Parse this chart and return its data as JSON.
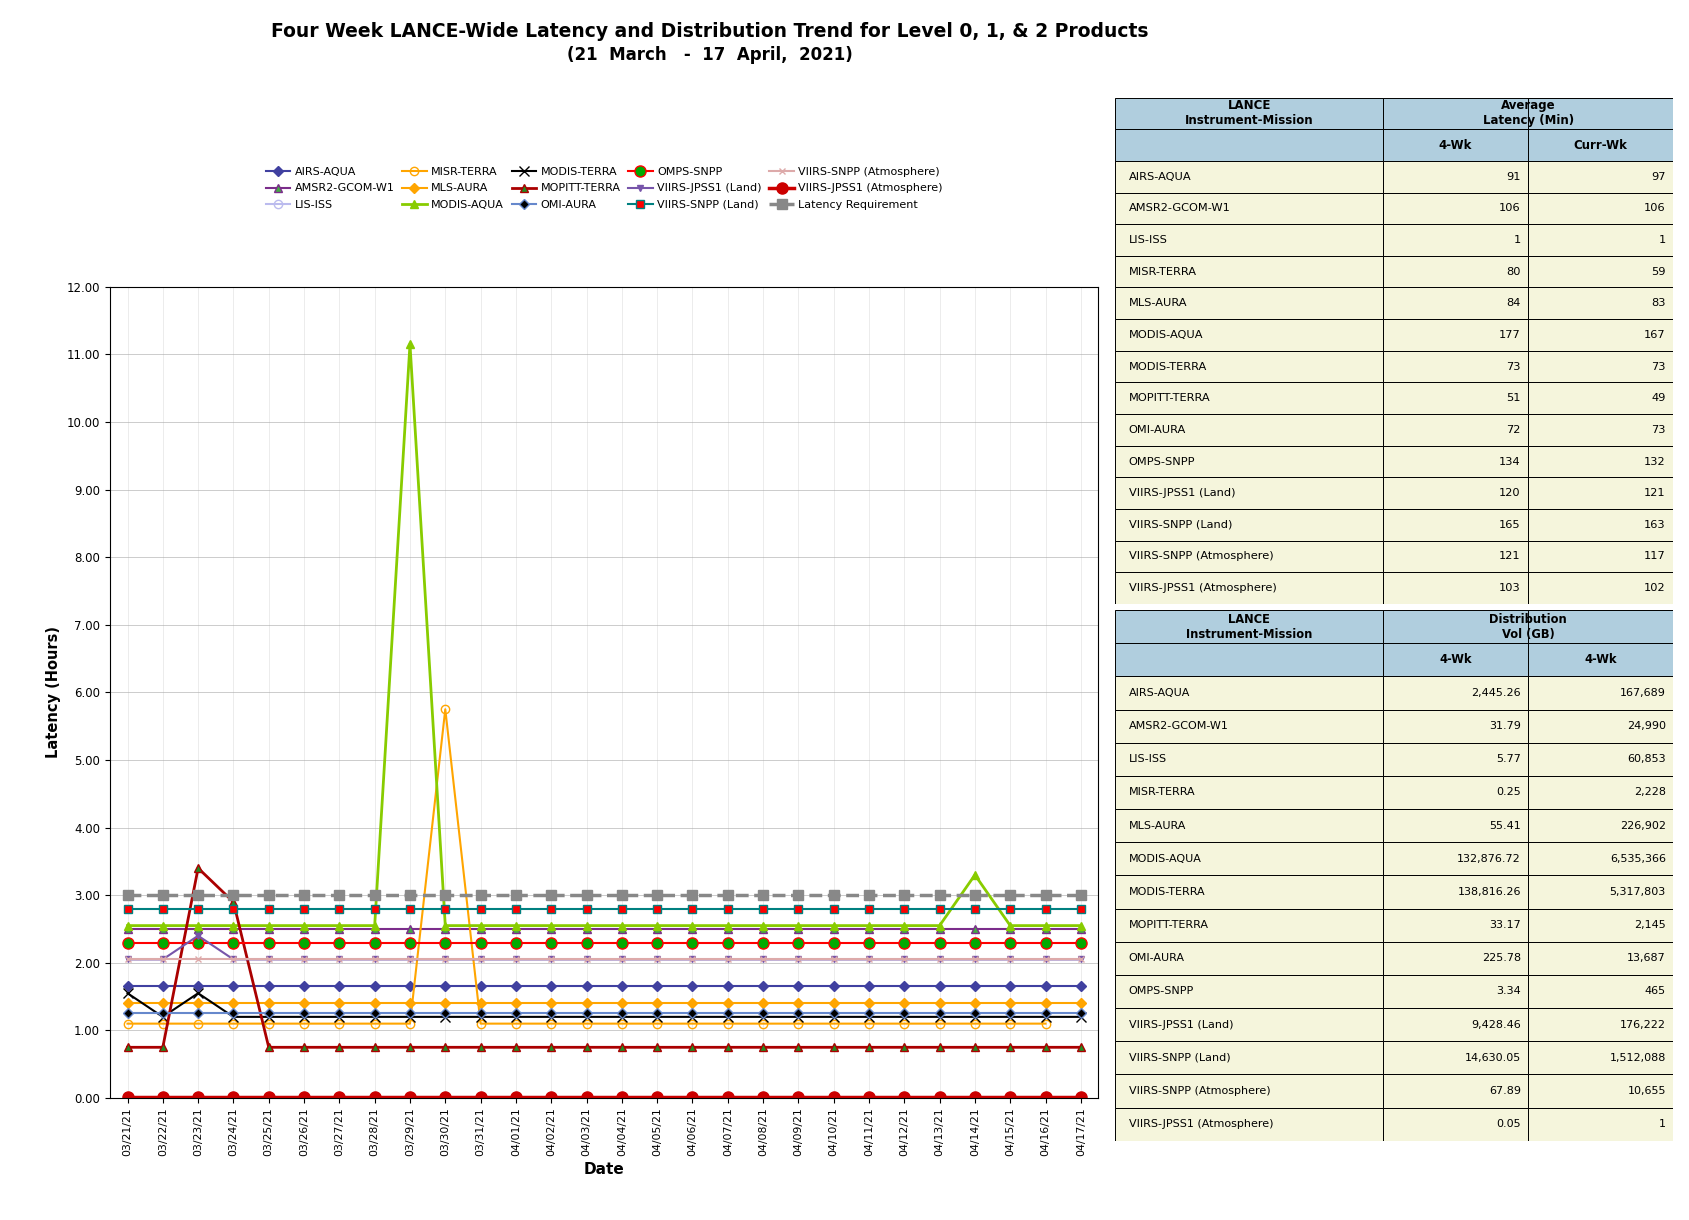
{
  "title_line1": "Four Week LANCE-Wide Latency and Distribution Trend for Level 0, 1, & 2 Products",
  "title_line2": "(21  March   -  17  April,  2021)",
  "xlabel": "Date",
  "ylabel": "Latency (Hours)",
  "ylim": [
    0.0,
    12.0
  ],
  "yticks": [
    0.0,
    1.0,
    2.0,
    3.0,
    4.0,
    5.0,
    6.0,
    7.0,
    8.0,
    9.0,
    10.0,
    11.0,
    12.0
  ],
  "dates": [
    "03/21/21",
    "03/22/21",
    "03/23/21",
    "03/24/21",
    "03/25/21",
    "03/26/21",
    "03/27/21",
    "03/28/21",
    "03/29/21",
    "03/30/21",
    "03/31/21",
    "04/01/21",
    "04/02/21",
    "04/03/21",
    "04/04/21",
    "04/05/21",
    "04/06/21",
    "04/07/21",
    "04/08/21",
    "04/09/21",
    "04/10/21",
    "04/11/21",
    "04/12/21",
    "04/13/21",
    "04/14/21",
    "04/15/21",
    "04/16/21",
    "04/17/21"
  ],
  "series": [
    {
      "name": "AIRS-AQUA",
      "color": "#4040A0",
      "marker": "D",
      "markersize": 5,
      "linewidth": 1.5,
      "linestyle": "-",
      "markerfacecolor": "#4040A0",
      "values": [
        1.65,
        1.65,
        1.65,
        1.65,
        1.65,
        1.65,
        1.65,
        1.65,
        1.65,
        1.65,
        1.65,
        1.65,
        1.65,
        1.65,
        1.65,
        1.65,
        1.65,
        1.65,
        1.65,
        1.65,
        1.65,
        1.65,
        1.65,
        1.65,
        1.65,
        1.65,
        1.65,
        1.65
      ]
    },
    {
      "name": "AMSR2-GCOM-W1",
      "color": "#7B2D8B",
      "marker": "^",
      "markersize": 6,
      "linewidth": 1.5,
      "linestyle": "-",
      "markerfacecolor": "#44AA44",
      "values": [
        2.5,
        2.5,
        2.5,
        2.5,
        2.5,
        2.5,
        2.5,
        2.5,
        2.5,
        2.5,
        2.5,
        2.5,
        2.5,
        2.5,
        2.5,
        2.5,
        2.5,
        2.5,
        2.5,
        2.5,
        2.5,
        2.5,
        2.5,
        2.5,
        2.5,
        2.5,
        2.5,
        2.5
      ]
    },
    {
      "name": "LIS-ISS",
      "color": "#BBBBEE",
      "marker": "o",
      "markersize": 6,
      "linewidth": 1.5,
      "linestyle": "-",
      "markerfacecolor": "none",
      "markeredgecolor": "#BBBBEE",
      "values": [
        0.02,
        0.02,
        0.02,
        0.02,
        0.02,
        0.02,
        0.02,
        0.02,
        0.02,
        0.02,
        0.02,
        0.02,
        0.02,
        0.02,
        0.02,
        0.02,
        0.02,
        0.02,
        0.02,
        0.02,
        0.02,
        0.02,
        0.02,
        0.02,
        0.02,
        0.02,
        0.02,
        0.02
      ]
    },
    {
      "name": "MISR-TERRA",
      "color": "#FFA500",
      "marker": "o",
      "markersize": 6,
      "linewidth": 1.5,
      "linestyle": "-",
      "markerfacecolor": "none",
      "markeredgecolor": "#FFA500",
      "values": [
        1.1,
        1.1,
        1.1,
        1.1,
        1.1,
        1.1,
        1.1,
        1.1,
        1.1,
        5.75,
        1.1,
        1.1,
        1.1,
        1.1,
        1.1,
        1.1,
        1.1,
        1.1,
        1.1,
        1.1,
        1.1,
        1.1,
        1.1,
        1.1,
        1.1,
        1.1,
        1.1,
        null
      ]
    },
    {
      "name": "MLS-AURA",
      "color": "#FFA500",
      "marker": "D",
      "markersize": 5,
      "linewidth": 1.5,
      "linestyle": "-",
      "markerfacecolor": "#FFA500",
      "values": [
        1.4,
        1.4,
        1.4,
        1.4,
        1.4,
        1.4,
        1.4,
        1.4,
        1.4,
        1.4,
        1.4,
        1.4,
        1.4,
        1.4,
        1.4,
        1.4,
        1.4,
        1.4,
        1.4,
        1.4,
        1.4,
        1.4,
        1.4,
        1.4,
        1.4,
        1.4,
        1.4,
        1.4
      ]
    },
    {
      "name": "MODIS-AQUA",
      "color": "#88CC00",
      "marker": "^",
      "markersize": 6,
      "linewidth": 2.0,
      "linestyle": "-",
      "markerfacecolor": "#88CC00",
      "values": [
        2.55,
        2.55,
        2.55,
        2.55,
        2.55,
        2.55,
        2.55,
        2.55,
        11.15,
        2.55,
        2.55,
        2.55,
        2.55,
        2.55,
        2.55,
        2.55,
        2.55,
        2.55,
        2.55,
        2.55,
        2.55,
        2.55,
        2.55,
        2.55,
        3.3,
        2.55,
        2.55,
        2.55
      ]
    },
    {
      "name": "MODIS-TERRA",
      "color": "#000000",
      "marker": "x",
      "markersize": 7,
      "linewidth": 1.5,
      "linestyle": "-",
      "markerfacecolor": "#000000",
      "values": [
        1.55,
        1.2,
        1.55,
        1.2,
        1.2,
        1.2,
        1.2,
        1.2,
        1.2,
        1.2,
        1.2,
        1.2,
        1.2,
        1.2,
        1.2,
        1.2,
        1.2,
        1.2,
        1.2,
        1.2,
        1.2,
        1.2,
        1.2,
        1.2,
        1.2,
        1.2,
        1.2,
        1.2
      ]
    },
    {
      "name": "MOPITT-TERRA",
      "color": "#AA0000",
      "marker": "^",
      "markersize": 6,
      "linewidth": 2.0,
      "linestyle": "-",
      "markerfacecolor": "#228B22",
      "values": [
        0.75,
        0.75,
        3.4,
        2.9,
        0.75,
        0.75,
        0.75,
        0.75,
        0.75,
        0.75,
        0.75,
        0.75,
        0.75,
        0.75,
        0.75,
        0.75,
        0.75,
        0.75,
        0.75,
        0.75,
        0.75,
        0.75,
        0.75,
        0.75,
        0.75,
        0.75,
        0.75,
        0.75
      ]
    },
    {
      "name": "OMI-AURA",
      "color": "#6688CC",
      "marker": "D",
      "markersize": 5,
      "linewidth": 1.5,
      "linestyle": "-",
      "markerfacecolor": "#000000",
      "values": [
        1.25,
        1.25,
        1.25,
        1.25,
        1.25,
        1.25,
        1.25,
        1.25,
        1.25,
        1.25,
        1.25,
        1.25,
        1.25,
        1.25,
        1.25,
        1.25,
        1.25,
        1.25,
        1.25,
        1.25,
        1.25,
        1.25,
        1.25,
        1.25,
        1.25,
        1.25,
        1.25,
        1.25
      ]
    },
    {
      "name": "OMPS-SNPP",
      "color": "#FF0000",
      "marker": "o",
      "markersize": 8,
      "linewidth": 1.5,
      "linestyle": "-",
      "markerfacecolor": "#00AA00",
      "values": [
        2.3,
        2.3,
        2.3,
        2.3,
        2.3,
        2.3,
        2.3,
        2.3,
        2.3,
        2.3,
        2.3,
        2.3,
        2.3,
        2.3,
        2.3,
        2.3,
        2.3,
        2.3,
        2.3,
        2.3,
        2.3,
        2.3,
        2.3,
        2.3,
        2.3,
        2.3,
        2.3,
        2.3
      ]
    },
    {
      "name": "VIIRS-JPSS1 (Land)",
      "color": "#7755AA",
      "marker": "v",
      "markersize": 5,
      "linewidth": 1.5,
      "linestyle": "-",
      "markerfacecolor": "#7755AA",
      "values": [
        2.05,
        2.05,
        2.4,
        2.05,
        2.05,
        2.05,
        2.05,
        2.05,
        2.05,
        2.05,
        2.05,
        2.05,
        2.05,
        2.05,
        2.05,
        2.05,
        2.05,
        2.05,
        2.05,
        2.05,
        2.05,
        2.05,
        2.05,
        2.05,
        2.05,
        2.05,
        2.05,
        2.05
      ]
    },
    {
      "name": "VIIRS-SNPP (Land)",
      "color": "#008080",
      "marker": "s",
      "markersize": 6,
      "linewidth": 1.5,
      "linestyle": "-",
      "markerfacecolor": "#FF0000",
      "values": [
        2.8,
        2.8,
        2.8,
        2.8,
        2.8,
        2.8,
        2.8,
        2.8,
        2.8,
        2.8,
        2.8,
        2.8,
        2.8,
        2.8,
        2.8,
        2.8,
        2.8,
        2.8,
        2.8,
        2.8,
        2.8,
        2.8,
        2.8,
        2.8,
        2.8,
        2.8,
        2.8,
        2.8
      ]
    },
    {
      "name": "VIIRS-SNPP (Atmosphere)",
      "color": "#DDAAAA",
      "marker": "x",
      "markersize": 5,
      "linewidth": 1.5,
      "linestyle": "-",
      "markerfacecolor": "#DDAAAA",
      "values": [
        2.05,
        2.05,
        2.05,
        2.05,
        2.05,
        2.05,
        2.05,
        2.05,
        2.05,
        2.05,
        2.05,
        2.05,
        2.05,
        2.05,
        2.05,
        2.05,
        2.05,
        2.05,
        2.05,
        2.05,
        2.05,
        2.05,
        2.05,
        2.05,
        2.05,
        2.05,
        2.05,
        2.05
      ]
    },
    {
      "name": "VIIRS-JPSS1 (Atmosphere)",
      "color": "#CC0000",
      "marker": "o",
      "markersize": 8,
      "linewidth": 2.5,
      "linestyle": "-",
      "markerfacecolor": "#CC0000",
      "values": [
        0.02,
        0.02,
        0.02,
        0.02,
        0.02,
        0.02,
        0.02,
        0.02,
        0.02,
        0.02,
        0.02,
        0.02,
        0.02,
        0.02,
        0.02,
        0.02,
        0.02,
        0.02,
        0.02,
        0.02,
        0.02,
        0.02,
        0.02,
        0.02,
        0.02,
        0.02,
        0.02,
        0.02
      ]
    },
    {
      "name": "Latency Requirement",
      "color": "#888888",
      "marker": "s",
      "markersize": 7,
      "linewidth": 2.5,
      "linestyle": "--",
      "markerfacecolor": "#888888",
      "values": [
        3.0,
        3.0,
        3.0,
        3.0,
        3.0,
        3.0,
        3.0,
        3.0,
        3.0,
        3.0,
        3.0,
        3.0,
        3.0,
        3.0,
        3.0,
        3.0,
        3.0,
        3.0,
        3.0,
        3.0,
        3.0,
        3.0,
        3.0,
        3.0,
        3.0,
        3.0,
        3.0,
        3.0
      ]
    }
  ],
  "legend_ncol": 5,
  "table1_rows": [
    [
      "AIRS-AQUA",
      "91",
      "97"
    ],
    [
      "AMSR2-GCOM-W1",
      "106",
      "106"
    ],
    [
      "LIS-ISS",
      "1",
      "1"
    ],
    [
      "MISR-TERRA",
      "80",
      "59"
    ],
    [
      "MLS-AURA",
      "84",
      "83"
    ],
    [
      "MODIS-AQUA",
      "177",
      "167"
    ],
    [
      "MODIS-TERRA",
      "73",
      "73"
    ],
    [
      "MOPITT-TERRA",
      "51",
      "49"
    ],
    [
      "OMI-AURA",
      "72",
      "73"
    ],
    [
      "OMPS-SNPP",
      "134",
      "132"
    ],
    [
      "VIIRS-JPSS1 (Land)",
      "120",
      "121"
    ],
    [
      "VIIRS-SNPP (Land)",
      "165",
      "163"
    ],
    [
      "VIIRS-SNPP (Atmosphere)",
      "121",
      "117"
    ],
    [
      "VIIRS-JPSS1 (Atmosphere)",
      "103",
      "102"
    ]
  ],
  "table2_rows": [
    [
      "AIRS-AQUA",
      "2,445.26",
      "167,689"
    ],
    [
      "AMSR2-GCOM-W1",
      "31.79",
      "24,990"
    ],
    [
      "LIS-ISS",
      "5.77",
      "60,853"
    ],
    [
      "MISR-TERRA",
      "0.25",
      "2,228"
    ],
    [
      "MLS-AURA",
      "55.41",
      "226,902"
    ],
    [
      "MODIS-AQUA",
      "132,876.72",
      "6,535,366"
    ],
    [
      "MODIS-TERRA",
      "138,816.26",
      "5,317,803"
    ],
    [
      "MOPITT-TERRA",
      "33.17",
      "2,145"
    ],
    [
      "OMI-AURA",
      "225.78",
      "13,687"
    ],
    [
      "OMPS-SNPP",
      "3.34",
      "465"
    ],
    [
      "VIIRS-JPSS1 (Land)",
      "9,428.46",
      "176,222"
    ],
    [
      "VIIRS-SNPP (Land)",
      "14,630.05",
      "1,512,088"
    ],
    [
      "VIIRS-SNPP (Atmosphere)",
      "67.89",
      "10,655"
    ],
    [
      "VIIRS-JPSS1 (Atmosphere)",
      "0.05",
      "1"
    ]
  ],
  "header_bg": "#B0CEDE",
  "subheader_bg": "#B0CEDE",
  "row_bg": "#F5F5DC",
  "chart_bg": "#FFFFFF",
  "grid_color": "#AAAAAA"
}
